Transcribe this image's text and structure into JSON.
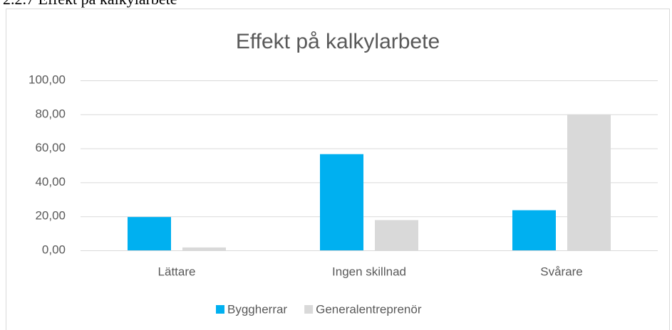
{
  "heading": "2.2.7 Effekt på kalkylarbete",
  "chart_data": {
    "type": "bar",
    "title": "Effekt på kalkylarbete",
    "categories": [
      "Lättare",
      "Ingen skillnad",
      "Svårare"
    ],
    "series": [
      {
        "name": "Byggherrar",
        "color": "#00b0f0",
        "values": [
          19.6,
          56.6,
          23.6
        ]
      },
      {
        "name": "Generalentreprenör",
        "color": "#d9d9d9",
        "values": [
          1.7,
          17.8,
          80.0
        ]
      }
    ],
    "ylim": [
      0,
      100
    ],
    "yticks": [
      {
        "value": 0,
        "label": "0,00"
      },
      {
        "value": 20,
        "label": "20,00"
      },
      {
        "value": 40,
        "label": "40,00"
      },
      {
        "value": 60,
        "label": "60,00"
      },
      {
        "value": 80,
        "label": "80,00"
      },
      {
        "value": 100,
        "label": "100,00"
      }
    ],
    "grid": true,
    "legend": "bottom"
  }
}
